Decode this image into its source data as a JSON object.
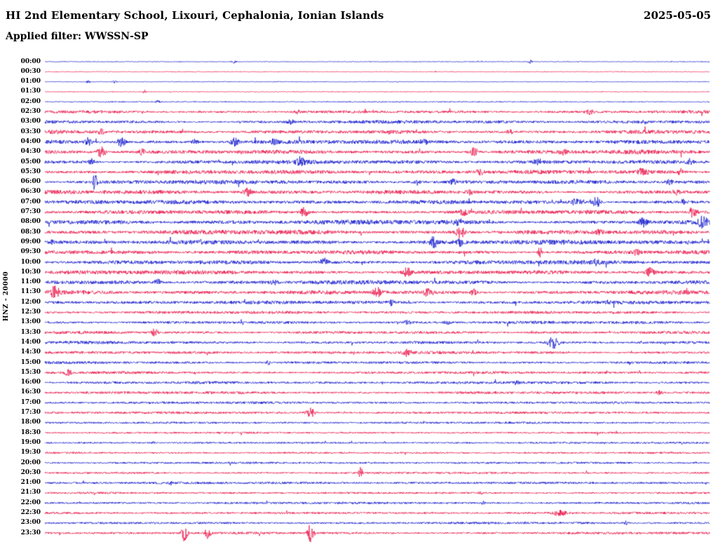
{
  "header": {
    "title": "HI 2nd Elementary School, Lixouri, Cephalonia, Ionian Islands",
    "date": "2025-05-05",
    "filter_label": "Applied filter: WWSSN-SP"
  },
  "chart_data": {
    "type": "line",
    "subtype": "helicorder-seismogram",
    "title": "HI 2nd Elementary School, Lixouri, Cephalonia, Ionian Islands",
    "date": "2025-05-05",
    "applied_filter": "WWSSN-SP",
    "station_label": "HNZ - 20000",
    "minutes_per_line": 30,
    "lines": 48,
    "grid": false,
    "legend": false,
    "palette": {
      "blue": "#0008c8",
      "red": "#e8043c"
    },
    "encoding_note": "rows: t=start time of line, c=trace color, n=background noise half-amplitude px, b=amplitude modulation 0-1, e=events as [position fraction of line, peak half-amplitude px, width px]",
    "rows": [
      {
        "t": "00:00",
        "c": "blue",
        "n": 0.5,
        "b": 0.15,
        "e": [
          [
            0.285,
            2,
            2
          ],
          [
            0.73,
            2.5,
            2
          ]
        ]
      },
      {
        "t": "00:30",
        "c": "red",
        "n": 0.5,
        "b": 0.15,
        "e": []
      },
      {
        "t": "01:00",
        "c": "blue",
        "n": 0.5,
        "b": 0.15,
        "e": [
          [
            0.065,
            1.8,
            2
          ],
          [
            0.105,
            1.4,
            2
          ]
        ]
      },
      {
        "t": "01:30",
        "c": "red",
        "n": 0.5,
        "b": 0.15,
        "e": [
          [
            0.15,
            2.2,
            2
          ]
        ]
      },
      {
        "t": "02:00",
        "c": "blue",
        "n": 0.7,
        "b": 0.2,
        "e": [
          [
            0.17,
            1.8,
            2
          ]
        ]
      },
      {
        "t": "02:30",
        "c": "red",
        "n": 1.6,
        "b": 0.5,
        "e": [
          [
            0.38,
            2.5,
            3
          ],
          [
            0.82,
            3,
            4
          ]
        ]
      },
      {
        "t": "03:00",
        "c": "blue",
        "n": 1.8,
        "b": 0.5,
        "e": [
          [
            0.37,
            3,
            3
          ],
          [
            0.9,
            2.5,
            3
          ]
        ]
      },
      {
        "t": "03:30",
        "c": "red",
        "n": 2.0,
        "b": 0.5,
        "e": [
          [
            0.085,
            3,
            3
          ],
          [
            0.52,
            2.5,
            3
          ],
          [
            0.7,
            3,
            3
          ]
        ]
      },
      {
        "t": "04:00",
        "c": "blue",
        "n": 2.2,
        "b": 0.5,
        "e": [
          [
            0.065,
            5,
            3
          ],
          [
            0.115,
            6,
            4
          ],
          [
            0.225,
            4,
            3
          ],
          [
            0.285,
            5,
            4
          ],
          [
            0.345,
            3.5,
            3
          ],
          [
            0.57,
            3,
            3
          ]
        ]
      },
      {
        "t": "04:30",
        "c": "red",
        "n": 2.2,
        "b": 0.5,
        "e": [
          [
            0.085,
            7,
            4
          ],
          [
            0.145,
            5,
            3
          ],
          [
            0.645,
            6,
            4
          ],
          [
            0.78,
            3,
            3
          ]
        ]
      },
      {
        "t": "05:00",
        "c": "blue",
        "n": 2.2,
        "b": 0.5,
        "e": [
          [
            0.07,
            4,
            3
          ],
          [
            0.385,
            5.5,
            4
          ],
          [
            0.74,
            3,
            3
          ],
          [
            0.97,
            4,
            3
          ]
        ]
      },
      {
        "t": "05:30",
        "c": "red",
        "n": 2.2,
        "b": 0.5,
        "e": [
          [
            0.655,
            4.5,
            3
          ],
          [
            0.9,
            5.5,
            4
          ],
          [
            0.955,
            4.5,
            3
          ]
        ]
      },
      {
        "t": "06:00",
        "c": "blue",
        "n": 2.2,
        "b": 0.5,
        "e": [
          [
            0.075,
            12,
            2
          ],
          [
            0.56,
            3.5,
            3
          ],
          [
            0.615,
            3.5,
            3
          ],
          [
            0.94,
            3,
            3
          ]
        ]
      },
      {
        "t": "06:30",
        "c": "red",
        "n": 2.2,
        "b": 0.5,
        "e": [
          [
            0.305,
            5,
            4
          ],
          [
            0.64,
            3,
            3
          ],
          [
            0.95,
            3.5,
            3
          ]
        ]
      },
      {
        "t": "07:00",
        "c": "blue",
        "n": 2.2,
        "b": 0.5,
        "e": [
          [
            0.8,
            6,
            4
          ],
          [
            0.83,
            7,
            4
          ],
          [
            0.96,
            3,
            2
          ]
        ]
      },
      {
        "t": "07:30",
        "c": "red",
        "n": 2.2,
        "b": 0.5,
        "e": [
          [
            0.39,
            6,
            4
          ],
          [
            0.63,
            4.5,
            3
          ],
          [
            0.975,
            7,
            4
          ]
        ]
      },
      {
        "t": "08:00",
        "c": "blue",
        "n": 2.4,
        "b": 0.5,
        "e": [
          [
            0.62,
            3,
            3
          ],
          [
            0.9,
            6,
            4
          ],
          [
            0.99,
            8,
            4
          ]
        ]
      },
      {
        "t": "08:30",
        "c": "red",
        "n": 2.4,
        "b": 0.5,
        "e": [
          [
            0.625,
            8,
            4
          ],
          [
            0.835,
            3.5,
            3
          ]
        ]
      },
      {
        "t": "09:00",
        "c": "blue",
        "n": 2.4,
        "b": 0.5,
        "e": [
          [
            0.01,
            3,
            2
          ],
          [
            0.585,
            7,
            4
          ],
          [
            0.625,
            5,
            3
          ]
        ]
      },
      {
        "t": "09:30",
        "c": "red",
        "n": 2.2,
        "b": 0.5,
        "e": [
          [
            0.745,
            8,
            2
          ],
          [
            0.89,
            3.5,
            3
          ]
        ]
      },
      {
        "t": "10:00",
        "c": "blue",
        "n": 2.2,
        "b": 0.5,
        "e": [
          [
            0.42,
            5.5,
            4
          ],
          [
            0.83,
            4,
            3
          ]
        ]
      },
      {
        "t": "10:30",
        "c": "red",
        "n": 2.2,
        "b": 0.5,
        "e": [
          [
            0.545,
            6,
            4
          ],
          [
            0.91,
            5.5,
            4
          ]
        ]
      },
      {
        "t": "11:00",
        "c": "blue",
        "n": 2.2,
        "b": 0.5,
        "e": [
          [
            0.17,
            4.5,
            3
          ],
          [
            0.345,
            3.5,
            3
          ]
        ]
      },
      {
        "t": "11:30",
        "c": "red",
        "n": 2.2,
        "b": 0.5,
        "e": [
          [
            0.015,
            8,
            4
          ],
          [
            0.5,
            6,
            4
          ],
          [
            0.575,
            5,
            3
          ],
          [
            0.645,
            4,
            3
          ]
        ]
      },
      {
        "t": "12:00",
        "c": "blue",
        "n": 2.0,
        "b": 0.4,
        "e": [
          [
            0.52,
            3.5,
            3
          ]
        ]
      },
      {
        "t": "12:30",
        "c": "red",
        "n": 1.6,
        "b": 0.4,
        "e": []
      },
      {
        "t": "13:00",
        "c": "blue",
        "n": 1.6,
        "b": 0.4,
        "e": [
          [
            0.545,
            2.5,
            3
          ],
          [
            0.605,
            2.5,
            3
          ]
        ]
      },
      {
        "t": "13:30",
        "c": "red",
        "n": 1.6,
        "b": 0.4,
        "e": [
          [
            0.165,
            5,
            3
          ]
        ]
      },
      {
        "t": "14:00",
        "c": "blue",
        "n": 1.6,
        "b": 0.4,
        "e": [
          [
            0.765,
            8,
            5
          ]
        ]
      },
      {
        "t": "14:30",
        "c": "red",
        "n": 1.6,
        "b": 0.4,
        "e": [
          [
            0.545,
            5.5,
            4
          ]
        ]
      },
      {
        "t": "15:00",
        "c": "blue",
        "n": 1.5,
        "b": 0.4,
        "e": [
          [
            0.335,
            2.5,
            3
          ]
        ]
      },
      {
        "t": "15:30",
        "c": "red",
        "n": 1.5,
        "b": 0.4,
        "e": [
          [
            0.035,
            4.5,
            3
          ]
        ]
      },
      {
        "t": "16:00",
        "c": "blue",
        "n": 1.5,
        "b": 0.4,
        "e": [
          [
            0.71,
            2.5,
            3
          ]
        ]
      },
      {
        "t": "16:30",
        "c": "red",
        "n": 1.5,
        "b": 0.4,
        "e": [
          [
            0.925,
            2.5,
            3
          ]
        ]
      },
      {
        "t": "17:00",
        "c": "blue",
        "n": 1.4,
        "b": 0.3,
        "e": []
      },
      {
        "t": "17:30",
        "c": "red",
        "n": 1.4,
        "b": 0.3,
        "e": [
          [
            0.4,
            6.5,
            4
          ]
        ]
      },
      {
        "t": "18:00",
        "c": "blue",
        "n": 1.2,
        "b": 0.3,
        "e": []
      },
      {
        "t": "18:30",
        "c": "red",
        "n": 1.1,
        "b": 0.3,
        "e": []
      },
      {
        "t": "19:00",
        "c": "blue",
        "n": 1.1,
        "b": 0.3,
        "e": [
          [
            0.165,
            2,
            2
          ]
        ]
      },
      {
        "t": "19:30",
        "c": "red",
        "n": 1.1,
        "b": 0.3,
        "e": []
      },
      {
        "t": "20:00",
        "c": "blue",
        "n": 1.2,
        "b": 0.3,
        "e": []
      },
      {
        "t": "20:30",
        "c": "red",
        "n": 1.2,
        "b": 0.3,
        "e": [
          [
            0.475,
            7,
            2
          ]
        ]
      },
      {
        "t": "21:00",
        "c": "blue",
        "n": 1.4,
        "b": 0.3,
        "e": [
          [
            0.19,
            2.5,
            2
          ]
        ]
      },
      {
        "t": "21:30",
        "c": "red",
        "n": 1.2,
        "b": 0.3,
        "e": [
          [
            0.655,
            2.5,
            2
          ]
        ]
      },
      {
        "t": "22:00",
        "c": "blue",
        "n": 1.3,
        "b": 0.3,
        "e": [
          [
            0.66,
            2.5,
            2
          ]
        ]
      },
      {
        "t": "22:30",
        "c": "red",
        "n": 1.3,
        "b": 0.3,
        "e": [
          [
            0.775,
            4,
            6
          ]
        ]
      },
      {
        "t": "23:00",
        "c": "blue",
        "n": 1.3,
        "b": 0.3,
        "e": [
          [
            0.875,
            2.5,
            2
          ]
        ]
      },
      {
        "t": "23:30",
        "c": "red",
        "n": 1.4,
        "b": 0.3,
        "e": [
          [
            0.21,
            11,
            3
          ],
          [
            0.245,
            7,
            3
          ],
          [
            0.4,
            14,
            3
          ]
        ]
      }
    ]
  }
}
